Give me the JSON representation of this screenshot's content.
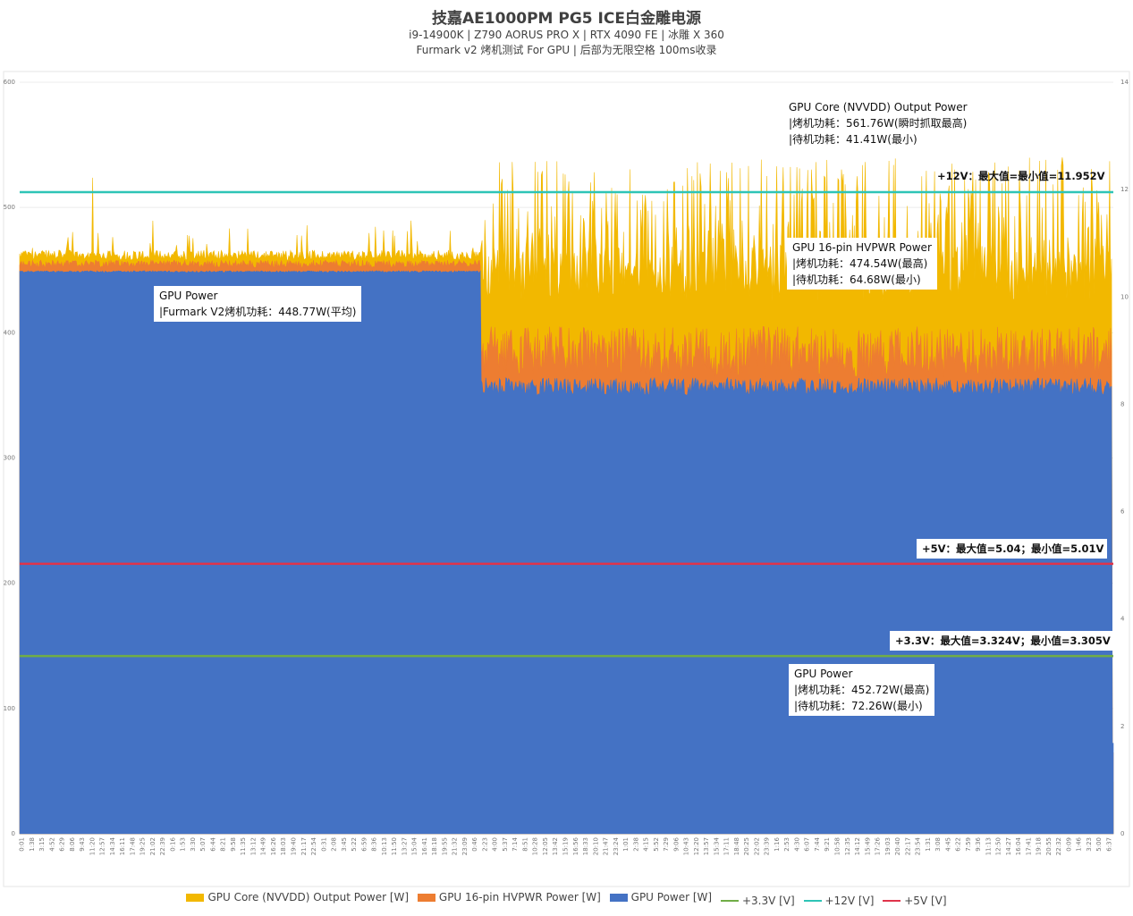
{
  "title": "技嘉AE1000PM PG5 ICE白金雕电源",
  "subtitle1": "i9-14900K | Z790 AORUS PRO X | RTX 4090 FE | 冰雕 X 360",
  "subtitle2": "Furmark v2 烤机测试 For GPU | 后部为无限空格 100ms收录",
  "annotations": {
    "gpu_power_avg": [
      "GPU Power",
      "|Furmark V2烤机功耗：448.77W(平均)"
    ],
    "nvvdd": [
      "GPU Core (NVVDD) Output Power",
      "|烤机功耗：561.76W(瞬时抓取最高)",
      "|待机功耗：41.41W(最小)"
    ],
    "hvpwr": [
      "GPU 16-pin HVPWR Power",
      "|烤机功耗：474.54W(最高)",
      "|待机功耗：64.68W(最小)"
    ],
    "v12": "+12V：最大值=最小值=11.952V",
    "v5": "+5V：最大值=5.04；最小值=5.01V",
    "v33": "+3.3V：最大值=3.324V；最小值=3.305V",
    "gpu_power": [
      "GPU Power",
      "|烤机功耗：452.72W(最高)",
      "|待机功耗：72.26W(最小)"
    ]
  },
  "chart_data": {
    "type": "area",
    "sampling": "100ms",
    "y_left": {
      "label": "W",
      "range": [
        0,
        600
      ],
      "ticks": [
        0,
        100,
        200,
        300,
        400,
        500,
        600
      ]
    },
    "y_right": {
      "label": "V",
      "range": [
        0,
        14
      ],
      "ticks": [
        0,
        2,
        4,
        6,
        8,
        10,
        12,
        14
      ]
    },
    "grid": true,
    "legend_position": "bottom",
    "x_start": "0:01",
    "x_step_seconds": 97,
    "x_tick_count": 109,
    "phase_split_fraction": 0.422,
    "series": [
      {
        "name": "GPU Core (NVVDD) Output Power [W]",
        "kind": "area",
        "axis": "left",
        "color": "#F2B800",
        "phase1_level": 458,
        "phase2_level": 425,
        "phase2_spike_max": 540,
        "max": 561.76,
        "min": 41.41
      },
      {
        "name": "GPU 16-pin HVPWR Power [W]",
        "kind": "area",
        "axis": "left",
        "color": "#ED7D31",
        "phase1_level": 452,
        "phase2_level": 385,
        "max": 474.54,
        "min": 64.68
      },
      {
        "name": "GPU Power [W]",
        "kind": "area",
        "axis": "left",
        "color": "#4472C4",
        "phase1_level": 448.77,
        "phase2_level": 357,
        "max": 452.72,
        "min": 72.26
      },
      {
        "name": "+3.3V [V]",
        "kind": "line",
        "axis": "right",
        "color": "#70AD47",
        "value": 3.31,
        "max": 3.324,
        "min": 3.305
      },
      {
        "name": "+12V [V]",
        "kind": "line",
        "axis": "right",
        "color": "#2EC4B6",
        "value": 11.952,
        "max": 11.952,
        "min": 11.952
      },
      {
        "name": "+5V [V]",
        "kind": "line",
        "axis": "right",
        "color": "#E0344A",
        "value": 5.03,
        "max": 5.04,
        "min": 5.01
      }
    ]
  }
}
